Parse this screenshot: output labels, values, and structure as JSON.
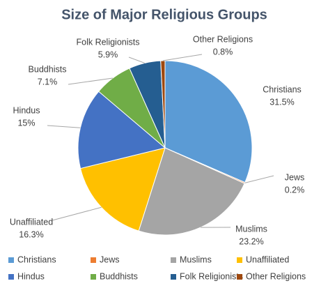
{
  "chart_data": {
    "type": "pie",
    "title": "Size of Major Religious Groups",
    "categories": [
      "Christians",
      "Jews",
      "Muslims",
      "Unaffiliated",
      "Hindus",
      "Buddhists",
      "Folk Religionists",
      "Other Religions"
    ],
    "values": [
      31.5,
      0.2,
      23.2,
      16.3,
      15,
      7.1,
      5.9,
      0.8
    ],
    "value_labels": [
      "31.5%",
      "0.2%",
      "23.2%",
      "16.3%",
      "15%",
      "7.1%",
      "5.9%",
      "0.8%"
    ],
    "colors": [
      "#5b9bd5",
      "#ed7d31",
      "#a5a5a5",
      "#ffc000",
      "#4472c4",
      "#70ad47",
      "#255e91",
      "#9e480e"
    ],
    "legend": "bottom"
  }
}
